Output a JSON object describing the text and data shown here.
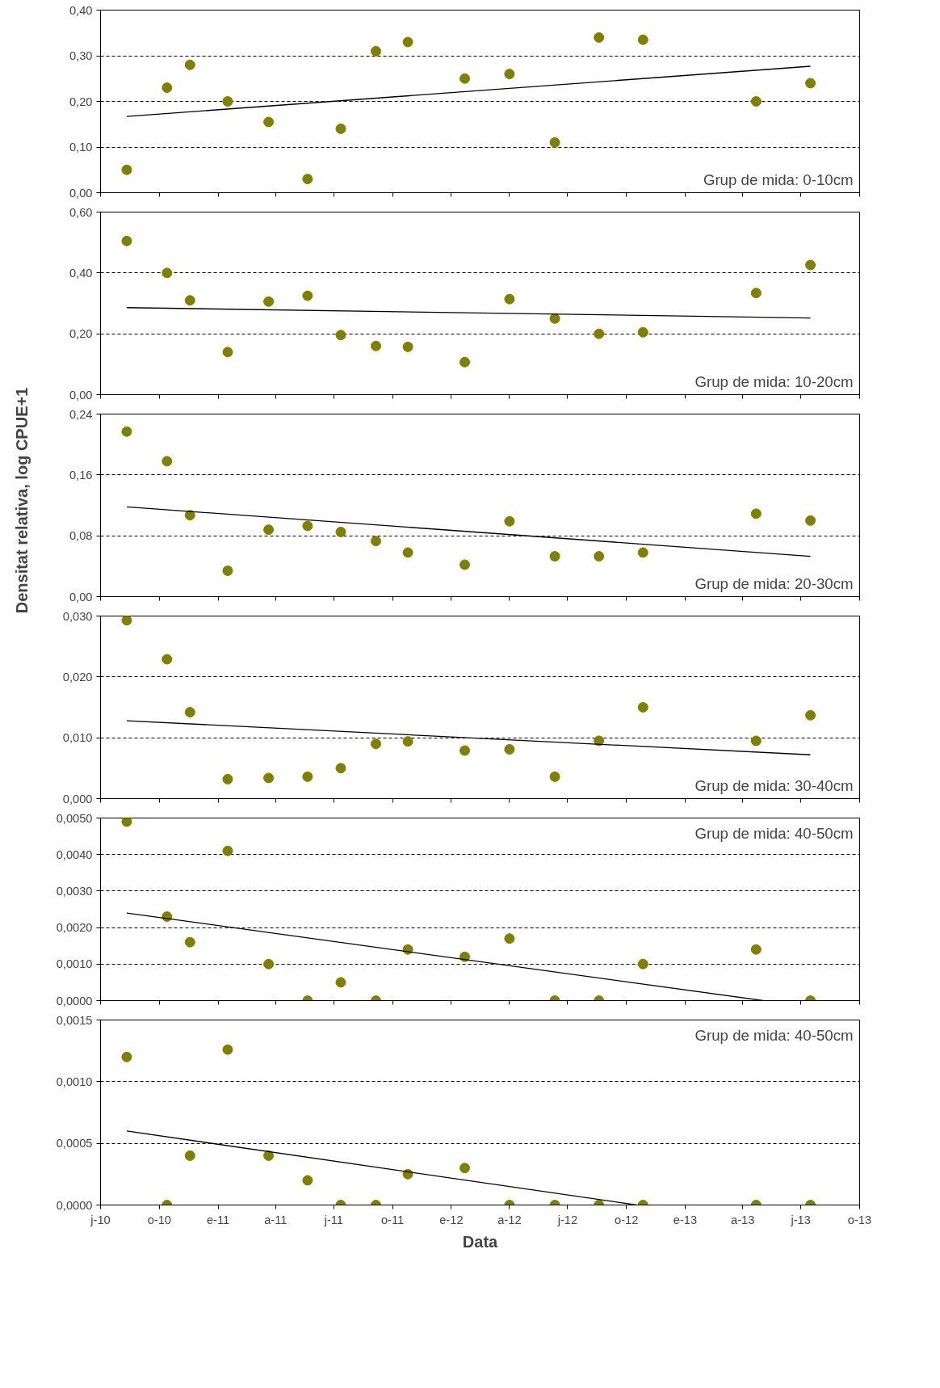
{
  "chart_data": [
    {
      "type": "scatter",
      "annotations": [
        "Grup de mida: 0-10cm"
      ],
      "x": [
        "2010-08-11",
        "2010-10-13",
        "2010-11-18",
        "2011-01-16",
        "2011-03-21",
        "2011-05-21",
        "2011-07-12",
        "2011-09-05",
        "2011-10-25",
        "2012-01-22",
        "2012-04-01",
        "2012-06-11",
        "2012-08-19",
        "2012-10-27",
        "2013-04-22",
        "2013-07-16"
      ],
      "series": [
        {
          "color": "#808000",
          "values": [
            0.05,
            0.23,
            0.28,
            0.2,
            0.155,
            0.03,
            0.14,
            0.31,
            0.33,
            0.25,
            0.26,
            0.11,
            0.34,
            0.335,
            0.2,
            0.24
          ]
        },
        {
          "type": "line",
          "marker": "none",
          "color": "#000000",
          "x": [
            "2010-08-11",
            "2013-07-16"
          ],
          "values": [
            0.167,
            0.277
          ]
        }
      ],
      "xlim": [
        "2010-07-01",
        "2013-10-01"
      ],
      "ylim": [
        0,
        0.4
      ],
      "yticks": [
        {
          "value": 0,
          "label": "0,00"
        },
        {
          "value": 0.1,
          "label": "0,10"
        },
        {
          "value": 0.2,
          "label": "0,20"
        },
        {
          "value": 0.3,
          "label": "0,30"
        },
        {
          "value": 0.4,
          "label": "0,40"
        }
      ],
      "xticks": [
        {
          "value": "2010-07-01",
          "label": null
        },
        {
          "value": "2010-10-01",
          "label": null
        },
        {
          "value": "2011-01-01",
          "label": null
        },
        {
          "value": "2011-04-01",
          "label": null
        },
        {
          "value": "2011-07-01",
          "label": null
        },
        {
          "value": "2011-10-01",
          "label": null
        },
        {
          "value": "2012-01-01",
          "label": null
        },
        {
          "value": "2012-04-01",
          "label": null
        },
        {
          "value": "2012-07-01",
          "label": null
        },
        {
          "value": "2012-10-01",
          "label": null
        },
        {
          "value": "2013-01-01",
          "label": null
        },
        {
          "value": "2013-04-01",
          "label": null
        },
        {
          "value": "2013-07-01",
          "label": null
        },
        {
          "value": "2013-10-01",
          "label": null
        }
      ],
      "tick_labels": "y",
      "grid": "y",
      "marker": "circle",
      "line_style": "solid"
    },
    {
      "type": "scatter",
      "annotations": [
        "Grup de mida: 10-20cm"
      ],
      "x": [
        "2010-08-11",
        "2010-10-13",
        "2010-11-18",
        "2011-01-16",
        "2011-03-21",
        "2011-05-21",
        "2011-07-12",
        "2011-09-05",
        "2011-10-25",
        "2012-01-22",
        "2012-04-01",
        "2012-06-11",
        "2012-08-19",
        "2012-10-27",
        "2013-04-22",
        "2013-07-16"
      ],
      "series": [
        {
          "color": "#808000",
          "values": [
            0.505,
            0.4,
            0.31,
            0.14,
            0.306,
            0.325,
            0.196,
            0.16,
            0.157,
            0.107,
            0.314,
            0.25,
            0.2,
            0.205,
            0.334,
            0.426
          ]
        },
        {
          "type": "line",
          "marker": "none",
          "color": "#000000",
          "x": [
            "2010-08-11",
            "2013-07-16"
          ],
          "values": [
            0.286,
            0.252
          ]
        }
      ],
      "xlim": [
        "2010-07-01",
        "2013-10-01"
      ],
      "ylim": [
        0,
        0.6
      ],
      "yticks": [
        {
          "value": 0,
          "label": "0,00"
        },
        {
          "value": 0.2,
          "label": "0,20"
        },
        {
          "value": 0.4,
          "label": "0,40"
        },
        {
          "value": 0.6,
          "label": "0,60"
        }
      ],
      "xticks": [
        {
          "value": "2010-07-01",
          "label": null
        },
        {
          "value": "2010-10-01",
          "label": null
        },
        {
          "value": "2011-01-01",
          "label": null
        },
        {
          "value": "2011-04-01",
          "label": null
        },
        {
          "value": "2011-07-01",
          "label": null
        },
        {
          "value": "2011-10-01",
          "label": null
        },
        {
          "value": "2012-01-01",
          "label": null
        },
        {
          "value": "2012-04-01",
          "label": null
        },
        {
          "value": "2012-07-01",
          "label": null
        },
        {
          "value": "2012-10-01",
          "label": null
        },
        {
          "value": "2013-01-01",
          "label": null
        },
        {
          "value": "2013-04-01",
          "label": null
        },
        {
          "value": "2013-07-01",
          "label": null
        },
        {
          "value": "2013-10-01",
          "label": null
        }
      ],
      "tick_labels": "y",
      "grid": "y",
      "marker": "circle",
      "line_style": "solid"
    },
    {
      "type": "scatter",
      "ylabel": "Densitat relativa, log CPUE+1",
      "annotations": [
        "Grup de mida: 20-30cm"
      ],
      "x": [
        "2010-08-11",
        "2010-10-13",
        "2010-11-18",
        "2011-01-16",
        "2011-03-21",
        "2011-05-21",
        "2011-07-12",
        "2011-09-05",
        "2011-10-25",
        "2012-01-22",
        "2012-04-01",
        "2012-06-11",
        "2012-08-19",
        "2012-10-27",
        "2013-04-22",
        "2013-07-16"
      ],
      "series": [
        {
          "color": "#808000",
          "values": [
            0.217,
            0.178,
            0.107,
            0.034,
            0.088,
            0.093,
            0.085,
            0.073,
            0.058,
            0.042,
            0.099,
            0.053,
            0.053,
            0.058,
            0.109,
            0.1
          ]
        },
        {
          "type": "line",
          "marker": "none",
          "color": "#000000",
          "x": [
            "2010-08-11",
            "2013-07-16"
          ],
          "values": [
            0.118,
            0.053
          ]
        }
      ],
      "xlim": [
        "2010-07-01",
        "2013-10-01"
      ],
      "ylim": [
        0,
        0.24
      ],
      "yticks": [
        {
          "value": 0,
          "label": "0,00"
        },
        {
          "value": 0.08,
          "label": "0,08"
        },
        {
          "value": 0.16,
          "label": "0,16"
        },
        {
          "value": 0.24,
          "label": "0,24"
        }
      ],
      "xticks": [
        {
          "value": "2010-07-01",
          "label": null
        },
        {
          "value": "2010-10-01",
          "label": null
        },
        {
          "value": "2011-01-01",
          "label": null
        },
        {
          "value": "2011-04-01",
          "label": null
        },
        {
          "value": "2011-07-01",
          "label": null
        },
        {
          "value": "2011-10-01",
          "label": null
        },
        {
          "value": "2012-01-01",
          "label": null
        },
        {
          "value": "2012-04-01",
          "label": null
        },
        {
          "value": "2012-07-01",
          "label": null
        },
        {
          "value": "2012-10-01",
          "label": null
        },
        {
          "value": "2013-01-01",
          "label": null
        },
        {
          "value": "2013-04-01",
          "label": null
        },
        {
          "value": "2013-07-01",
          "label": null
        },
        {
          "value": "2013-10-01",
          "label": null
        }
      ],
      "tick_labels": "y",
      "grid": "y",
      "marker": "circle",
      "line_style": "solid"
    },
    {
      "type": "scatter",
      "annotations": [
        "Grup de mida: 30-40cm"
      ],
      "x": [
        "2010-08-11",
        "2010-10-13",
        "2010-11-18",
        "2011-01-16",
        "2011-03-21",
        "2011-05-21",
        "2011-07-12",
        "2011-09-05",
        "2011-10-25",
        "2012-01-22",
        "2012-04-01",
        "2012-06-11",
        "2012-08-19",
        "2012-10-27",
        "2013-04-22",
        "2013-07-16"
      ],
      "series": [
        {
          "color": "#808000",
          "values": [
            0.0293,
            0.0229,
            0.0142,
            0.0032,
            0.0034,
            0.0036,
            0.005,
            0.009,
            0.0094,
            0.0079,
            0.0081,
            0.0036,
            0.0095,
            0.015,
            0.0095,
            0.0137
          ]
        },
        {
          "type": "line",
          "marker": "none",
          "color": "#000000",
          "x": [
            "2010-08-11",
            "2013-07-16"
          ],
          "values": [
            0.0128,
            0.0072
          ]
        }
      ],
      "xlim": [
        "2010-07-01",
        "2013-10-01"
      ],
      "ylim": [
        0,
        0.03
      ],
      "yticks": [
        {
          "value": 0,
          "label": "0,000"
        },
        {
          "value": 0.01,
          "label": "0,010"
        },
        {
          "value": 0.02,
          "label": "0,020"
        },
        {
          "value": 0.03,
          "label": "0,030"
        }
      ],
      "xticks": [
        {
          "value": "2010-07-01",
          "label": null
        },
        {
          "value": "2010-10-01",
          "label": null
        },
        {
          "value": "2011-01-01",
          "label": null
        },
        {
          "value": "2011-04-01",
          "label": null
        },
        {
          "value": "2011-07-01",
          "label": null
        },
        {
          "value": "2011-10-01",
          "label": null
        },
        {
          "value": "2012-01-01",
          "label": null
        },
        {
          "value": "2012-04-01",
          "label": null
        },
        {
          "value": "2012-07-01",
          "label": null
        },
        {
          "value": "2012-10-01",
          "label": null
        },
        {
          "value": "2013-01-01",
          "label": null
        },
        {
          "value": "2013-04-01",
          "label": null
        },
        {
          "value": "2013-07-01",
          "label": null
        },
        {
          "value": "2013-10-01",
          "label": null
        }
      ],
      "tick_labels": "y",
      "grid": "y",
      "marker": "circle",
      "line_style": "solid"
    },
    {
      "type": "scatter",
      "annotations": [
        "Grup de mida: 40-50cm"
      ],
      "x": [
        "2010-08-11",
        "2010-10-13",
        "2010-11-18",
        "2011-01-16",
        "2011-03-21",
        "2011-05-21",
        "2011-07-12",
        "2011-09-05",
        "2011-10-25",
        "2012-01-22",
        "2012-04-01",
        "2012-06-11",
        "2012-08-19",
        "2012-10-27",
        "2013-04-22",
        "2013-07-16"
      ],
      "series": [
        {
          "color": "#808000",
          "values": [
            0.0049,
            0.0023,
            0.0016,
            0.0041,
            0.001,
            0,
            0.0005,
            0,
            0.0014,
            0.0012,
            0.0017,
            0,
            0,
            0.001,
            0.0014,
            0
          ]
        },
        {
          "type": "line",
          "marker": "none",
          "color": "#000000",
          "x": [
            "2010-08-11",
            "2013-05-03"
          ],
          "values": [
            0.0024,
            0
          ]
        }
      ],
      "xlim": [
        "2010-07-01",
        "2013-10-01"
      ],
      "ylim": [
        0,
        0.005
      ],
      "yticks": [
        {
          "value": 0,
          "label": "0,0000"
        },
        {
          "value": 0.001,
          "label": "0,0010"
        },
        {
          "value": 0.002,
          "label": "0,0020"
        },
        {
          "value": 0.003,
          "label": "0,0030"
        },
        {
          "value": 0.004,
          "label": "0,0040"
        },
        {
          "value": 0.005,
          "label": "0,0050"
        }
      ],
      "xticks": [
        {
          "value": "2010-07-01",
          "label": null
        },
        {
          "value": "2010-10-01",
          "label": null
        },
        {
          "value": "2011-01-01",
          "label": null
        },
        {
          "value": "2011-04-01",
          "label": null
        },
        {
          "value": "2011-07-01",
          "label": null
        },
        {
          "value": "2011-10-01",
          "label": null
        },
        {
          "value": "2012-01-01",
          "label": null
        },
        {
          "value": "2012-04-01",
          "label": null
        },
        {
          "value": "2012-07-01",
          "label": null
        },
        {
          "value": "2012-10-01",
          "label": null
        },
        {
          "value": "2013-01-01",
          "label": null
        },
        {
          "value": "2013-04-01",
          "label": null
        },
        {
          "value": "2013-07-01",
          "label": null
        },
        {
          "value": "2013-10-01",
          "label": null
        }
      ],
      "tick_labels": "y",
      "grid": "y",
      "marker": "circle",
      "line_style": "solid"
    },
    {
      "type": "scatter",
      "xlabel": "Data",
      "annotations": [
        "Grup de mida: 40-50cm"
      ],
      "x": [
        "2010-08-11",
        "2010-10-13",
        "2010-11-18",
        "2011-01-16",
        "2011-03-21",
        "2011-05-21",
        "2011-07-12",
        "2011-09-05",
        "2011-10-25",
        "2012-01-22",
        "2012-04-01",
        "2012-06-11",
        "2012-08-19",
        "2012-10-27",
        "2013-04-22",
        "2013-07-16"
      ],
      "series": [
        {
          "color": "#808000",
          "values": [
            0.0012,
            0,
            0.0004,
            0.00126,
            0.0004,
            0.0002,
            0,
            0,
            0.00025,
            0.0003,
            0,
            0,
            0,
            0,
            0,
            0
          ]
        },
        {
          "type": "line",
          "marker": "none",
          "color": "#000000",
          "x": [
            "2010-08-11",
            "2012-10-17"
          ],
          "values": [
            0.0006,
            0
          ]
        }
      ],
      "xlim": [
        "2010-07-01",
        "2013-10-01"
      ],
      "ylim": [
        0,
        0.0015
      ],
      "yticks": [
        {
          "value": 0,
          "label": "0,0000"
        },
        {
          "value": 0.0005,
          "label": "0,0005"
        },
        {
          "value": 0.001,
          "label": "0,0010"
        },
        {
          "value": 0.0015,
          "label": "0,0015"
        }
      ],
      "xticks": [
        {
          "value": "2010-07-01",
          "label": "j-10"
        },
        {
          "value": "2010-10-01",
          "label": "o-10"
        },
        {
          "value": "2011-01-01",
          "label": "e-11"
        },
        {
          "value": "2011-04-01",
          "label": "a-11"
        },
        {
          "value": "2011-07-01",
          "label": "j-11"
        },
        {
          "value": "2011-10-01",
          "label": "o-11"
        },
        {
          "value": "2012-01-01",
          "label": "e-12"
        },
        {
          "value": "2012-04-01",
          "label": "a-12"
        },
        {
          "value": "2012-07-01",
          "label": "j-12"
        },
        {
          "value": "2012-10-01",
          "label": "o-12"
        },
        {
          "value": "2013-01-01",
          "label": "e-13"
        },
        {
          "value": "2013-04-01",
          "label": "a-13"
        },
        {
          "value": "2013-07-01",
          "label": "j-13"
        },
        {
          "value": "2013-10-01",
          "label": "o-13"
        }
      ],
      "grid": "y",
      "marker": "circle",
      "line_style": "solid"
    }
  ]
}
